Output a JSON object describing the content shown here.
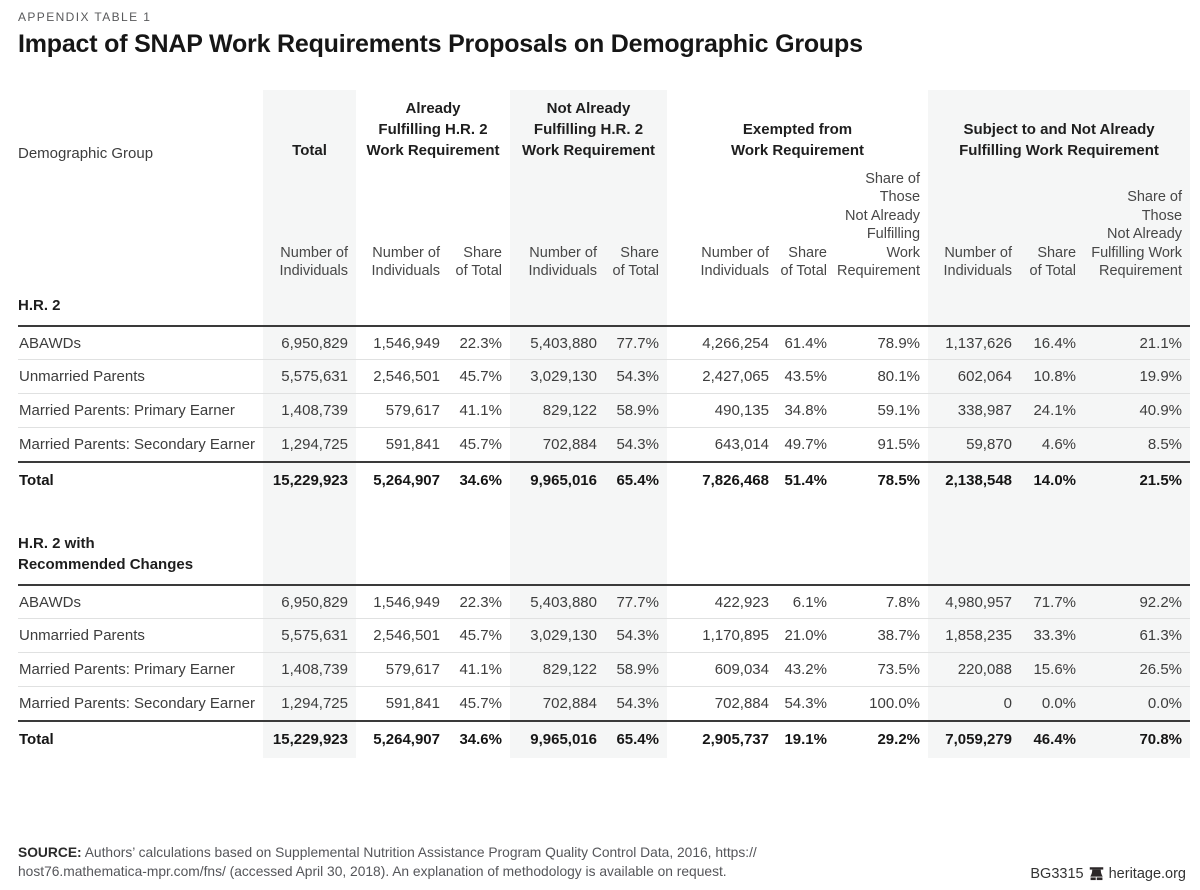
{
  "page": {
    "eyebrow": "APPENDIX TABLE 1",
    "title": "Impact of SNAP Work Requirements Proposals on Demographic Groups"
  },
  "table": {
    "demographic_group_label": "Demographic Group",
    "groups": {
      "total": "Total",
      "already": "Already\nFulfilling H.R. 2\nWork Requirement",
      "not_already": "Not Already\nFulfilling H.R. 2\nWork Requirement",
      "exempted": "Exempted from\nWork Requirement",
      "subject": "Subject to and Not Already\nFulfilling Work Requirement"
    },
    "subheaders": {
      "number": "Number of\nIndividuals",
      "share": "Share\nof Total",
      "share_not_already": "Share of Those\nNot Already\nFulfilling Work\nRequirement"
    },
    "sections": [
      {
        "heading": "H.R. 2",
        "rows": [
          {
            "label": "ABAWDs",
            "values": [
              "6,950,829",
              "1,546,949",
              "22.3%",
              "5,403,880",
              "77.7%",
              "4,266,254",
              "61.4%",
              "78.9%",
              "1,137,626",
              "16.4%",
              "21.1%"
            ]
          },
          {
            "label": "Unmarried Parents",
            "values": [
              "5,575,631",
              "2,546,501",
              "45.7%",
              "3,029,130",
              "54.3%",
              "2,427,065",
              "43.5%",
              "80.1%",
              "602,064",
              "10.8%",
              "19.9%"
            ]
          },
          {
            "label": "Married Parents: Primary Earner",
            "values": [
              "1,408,739",
              "579,617",
              "41.1%",
              "829,122",
              "58.9%",
              "490,135",
              "34.8%",
              "59.1%",
              "338,987",
              "24.1%",
              "40.9%"
            ]
          },
          {
            "label": "Married Parents: Secondary Earner",
            "values": [
              "1,294,725",
              "591,841",
              "45.7%",
              "702,884",
              "54.3%",
              "643,014",
              "49.7%",
              "91.5%",
              "59,870",
              "4.6%",
              "8.5%"
            ]
          }
        ],
        "total": {
          "label": "Total",
          "values": [
            "15,229,923",
            "5,264,907",
            "34.6%",
            "9,965,016",
            "65.4%",
            "7,826,468",
            "51.4%",
            "78.5%",
            "2,138,548",
            "14.0%",
            "21.5%"
          ]
        }
      },
      {
        "heading": "H.R. 2 with\nRecommended Changes",
        "rows": [
          {
            "label": "ABAWDs",
            "values": [
              "6,950,829",
              "1,546,949",
              "22.3%",
              "5,403,880",
              "77.7%",
              "422,923",
              "6.1%",
              "7.8%",
              "4,980,957",
              "71.7%",
              "92.2%"
            ]
          },
          {
            "label": "Unmarried Parents",
            "values": [
              "5,575,631",
              "2,546,501",
              "45.7%",
              "3,029,130",
              "54.3%",
              "1,170,895",
              "21.0%",
              "38.7%",
              "1,858,235",
              "33.3%",
              "61.3%"
            ]
          },
          {
            "label": "Married Parents: Primary Earner",
            "values": [
              "1,408,739",
              "579,617",
              "41.1%",
              "829,122",
              "58.9%",
              "609,034",
              "43.2%",
              "73.5%",
              "220,088",
              "15.6%",
              "26.5%"
            ]
          },
          {
            "label": "Married Parents: Secondary Earner",
            "values": [
              "1,294,725",
              "591,841",
              "45.7%",
              "702,884",
              "54.3%",
              "702,884",
              "54.3%",
              "100.0%",
              "0",
              "0.0%",
              "0.0%"
            ]
          }
        ],
        "total": {
          "label": "Total",
          "values": [
            "15,229,923",
            "5,264,907",
            "34.6%",
            "9,965,016",
            "65.4%",
            "2,905,737",
            "19.1%",
            "29.2%",
            "7,059,279",
            "46.4%",
            "70.8%"
          ]
        }
      }
    ]
  },
  "footer": {
    "source_label": "SOURCE:",
    "source_line1": " Authors’ calculations based on Supplemental Nutrition Assistance Program Quality Control Data, 2016, https://",
    "source_line2": "host76.mathematica-mpr.com/fns/ (accessed April 30, 2018). An explanation of methodology is available on request.",
    "report_id": "BG3315",
    "site": "heritage.org",
    "bell_icon": "liberty-bell-icon"
  },
  "colors": {
    "shade": "#f5f6f6",
    "rule_dark": "#3a3a3a",
    "rule_light": "#e0e1e1",
    "text": "#3d3d3d",
    "text_dark": "#161616",
    "muted": "#58595b"
  }
}
